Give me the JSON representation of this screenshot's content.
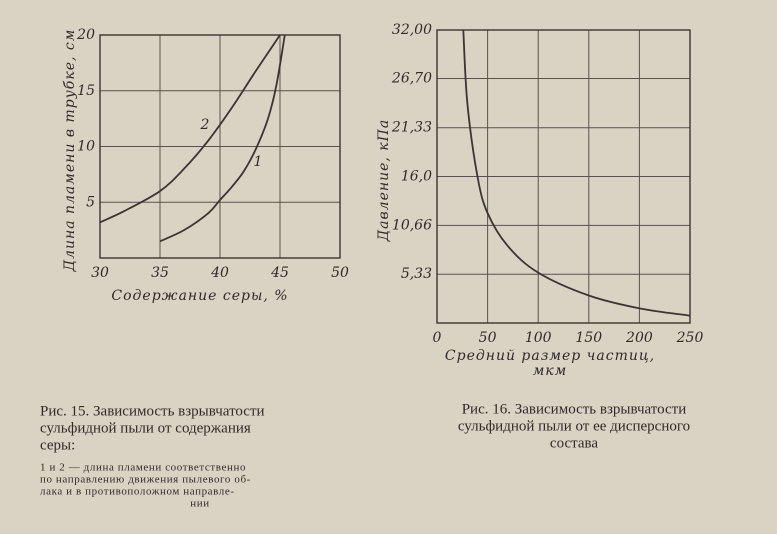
{
  "chart_data": [
    {
      "type": "line",
      "x_label": [
        "Содержание серы, %"
      ],
      "y_label": "Длина пламени в трубке, см",
      "xlim": [
        30,
        50
      ],
      "xticks": [
        30,
        35,
        40,
        45,
        50
      ],
      "ylim": [
        0,
        20
      ],
      "yticks": [
        5,
        10,
        15,
        20
      ],
      "grid": true,
      "color": "#3a3434",
      "series": [
        {
          "name": "2",
          "x": [
            30,
            32,
            35,
            37,
            39,
            41,
            43,
            45
          ],
          "values": [
            3.2,
            4.2,
            6,
            8,
            10.5,
            13.5,
            16.8,
            20
          ]
        },
        {
          "name": "1",
          "x": [
            35,
            37,
            39,
            40,
            41,
            42,
            43,
            44,
            44.7,
            45.4
          ],
          "values": [
            1.5,
            2.5,
            4,
            5.2,
            6.4,
            7.8,
            9.8,
            12.5,
            15.5,
            20
          ]
        }
      ],
      "caption": [
        "Рис. 15. Зависимость взрывчатости",
        "сульфидной пыли от содержания",
        "серы:"
      ],
      "note": [
        "1 и 2 — длина пламени соответственно",
        "по направлению движения пылевого об-",
        "лака и в противоположном направле-",
        "нии"
      ]
    },
    {
      "type": "line",
      "x_label": [
        "Средний размер частиц,",
        "мкм"
      ],
      "y_label": "Давление, кПа",
      "xlim": [
        0,
        250
      ],
      "xticks": [
        0,
        50,
        100,
        150,
        200,
        250
      ],
      "ylim": [
        0,
        32
      ],
      "yticks": [
        {
          "value": 5.33,
          "label": "5,33"
        },
        {
          "value": 10.66,
          "label": "10,66"
        },
        {
          "value": 16,
          "label": "16,0"
        },
        {
          "value": 21.33,
          "label": "21,33"
        },
        {
          "value": 26.7,
          "label": "26,70"
        },
        {
          "value": 32,
          "label": "32,00"
        }
      ],
      "grid": true,
      "color": "#3a3434",
      "series": [
        {
          "x": [
            26,
            30,
            40,
            50,
            70,
            100,
            150,
            200,
            250
          ],
          "values": [
            32,
            24,
            16,
            12,
            8.4,
            5.5,
            3,
            1.6,
            0.8
          ]
        }
      ],
      "caption": [
        "Рис. 16. Зависимость взрывчатости",
        "сульфидной пыли от ее дисперсного",
        "состава"
      ]
    }
  ]
}
